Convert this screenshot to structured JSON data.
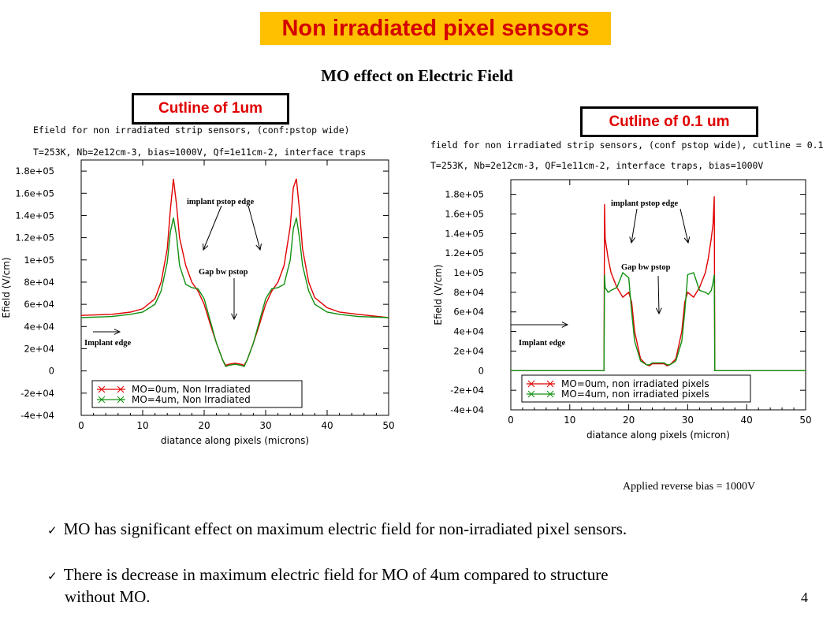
{
  "slide": {
    "title": "Non irradiated pixel sensors",
    "subtitle": "MO effect on Electric Field",
    "note": "Applied reverse bias = 1000V",
    "page_number": "4",
    "bullets": [
      "MO has significant effect on maximum electric field for non-irradiated pixel sensors.",
      "There is decrease in maximum electric field for MO of 4um compared to structure",
      "without MO."
    ],
    "colors": {
      "title_bg": "#ffc000",
      "title_text": "#d40000",
      "cutline_text": "#e00000"
    }
  },
  "chart_data": [
    {
      "type": "line",
      "cutline_label": "Cutline  of 1um",
      "header_lines": [
        "Efield for non irradiated strip sensors, (conf:pstop wide)",
        "T=253K, Nb=2e12cm-3, bias=1000V, Qf=1e11cm-2, interface traps"
      ],
      "xlabel": "diatance along pixels (microns)",
      "ylabel": "Efield (V/cm)",
      "xlim": [
        0,
        50
      ],
      "ylim": [
        -40000,
        190000
      ],
      "xticks": [
        "0",
        "10",
        "20",
        "30",
        "40",
        "50"
      ],
      "yticks": [
        "-4e+04",
        "-2e+04",
        "0",
        "2e+04",
        "4e+04",
        "6e+04",
        "8e+04",
        "1e+05",
        "1.2e+05",
        "1.4e+05",
        "1.6e+05",
        "1.8e+05"
      ],
      "legend_position": "bottom-center",
      "annotations": [
        "implant  pstop edge",
        "Gap bw  pstop",
        "Implant edge"
      ],
      "series": [
        {
          "name": "MO=0um, Non Irradiated",
          "color": "#e00000",
          "x": [
            0,
            5,
            8,
            10,
            12,
            13,
            14,
            14.5,
            15,
            15.5,
            16,
            17,
            18,
            19,
            20,
            21,
            22,
            23,
            23.5,
            24,
            25,
            26,
            26.5,
            27,
            28,
            29,
            30,
            31,
            32,
            33,
            34,
            34.5,
            35,
            35.5,
            36,
            37,
            38,
            40,
            42,
            45,
            50
          ],
          "y": [
            50000,
            51000,
            53000,
            56000,
            65000,
            80000,
            110000,
            145000,
            173000,
            150000,
            120000,
            95000,
            80000,
            72000,
            60000,
            42000,
            25000,
            10000,
            5000,
            6000,
            7000,
            6000,
            5000,
            10000,
            25000,
            42000,
            60000,
            72000,
            80000,
            95000,
            130000,
            165000,
            173000,
            145000,
            110000,
            80000,
            66000,
            57000,
            53000,
            51000,
            48000
          ]
        },
        {
          "name": "MO=4um, Non Irradiated",
          "color": "#109010",
          "x": [
            0,
            5,
            8,
            10,
            12,
            13,
            14,
            14.5,
            15,
            15.5,
            16,
            17,
            18,
            19,
            20,
            21,
            22,
            23,
            23.5,
            24,
            25,
            26,
            26.5,
            27,
            28,
            29,
            30,
            31,
            32,
            33,
            34,
            34.5,
            35,
            35.5,
            36,
            37,
            38,
            40,
            42,
            45,
            50
          ],
          "y": [
            48000,
            49000,
            51000,
            53000,
            60000,
            72000,
            98000,
            125000,
            138000,
            122000,
            95000,
            78000,
            75000,
            74000,
            65000,
            45000,
            25000,
            10000,
            4000,
            5000,
            6000,
            5000,
            4000,
            10000,
            25000,
            45000,
            65000,
            74000,
            75000,
            78000,
            100000,
            128000,
            138000,
            120000,
            95000,
            72000,
            60000,
            53000,
            51000,
            49000,
            48000
          ]
        }
      ]
    },
    {
      "type": "line",
      "cutline_label": "Cutline  of 0.1 um",
      "header_lines": [
        "field for non irradiated strip sensors, (conf pstop wide), cutline = 0.1",
        "T=253K, Nb=2e12cm-3, QF=1e11cm-2, interface traps, bias=1000V"
      ],
      "xlabel": "diatance along pixels (micron)",
      "ylabel": "Efield (V/cm)",
      "xlim": [
        0,
        50
      ],
      "ylim": [
        -40000,
        195000
      ],
      "xticks": [
        "0",
        "10",
        "20",
        "30",
        "40",
        "50"
      ],
      "yticks": [
        "-4e+04",
        "-2e+04",
        "0",
        "2e+04",
        "4e+04",
        "6e+04",
        "8e+04",
        "1e+05",
        "1.2e+05",
        "1.4e+05",
        "1.6e+05",
        "1.8e+05"
      ],
      "legend_position": "bottom-center",
      "annotations": [
        "implant pstop edge",
        "Gap bw  pstop",
        "Implant edge"
      ],
      "series": [
        {
          "name": "MO=0um, non irradiated pixels",
          "color": "#e00000",
          "x": [
            0,
            15.8,
            15.9,
            16,
            16.5,
            17,
            18,
            19,
            20,
            20.5,
            21,
            22,
            23,
            23.5,
            24,
            25,
            26,
            26.5,
            27,
            28,
            29,
            29.5,
            30,
            31,
            32,
            33,
            33.5,
            34,
            34.3,
            34.5,
            34.6,
            50
          ],
          "y": [
            0,
            0,
            170000,
            135000,
            115000,
            100000,
            85000,
            75000,
            80000,
            70000,
            40000,
            12000,
            6000,
            5000,
            7000,
            7000,
            7000,
            5000,
            6000,
            12000,
            40000,
            70000,
            80000,
            75000,
            85000,
            100000,
            115000,
            135000,
            150000,
            178000,
            0,
            0
          ]
        },
        {
          "name": "MO=4um, non irradiated pixels",
          "color": "#109010",
          "x": [
            0,
            15.8,
            15.9,
            16,
            16.5,
            17,
            18,
            19,
            20,
            20.5,
            21,
            22,
            23,
            23.5,
            24,
            25,
            26,
            26.5,
            27,
            28,
            29,
            29.5,
            30,
            31,
            32,
            33,
            33.5,
            34,
            34.3,
            34.5,
            34.6,
            50
          ],
          "y": [
            0,
            0,
            98000,
            85000,
            80000,
            82000,
            85000,
            100000,
            95000,
            60000,
            30000,
            10000,
            6000,
            6000,
            8000,
            8000,
            8000,
            6000,
            6000,
            10000,
            30000,
            60000,
            98000,
            100000,
            82000,
            80000,
            78000,
            82000,
            90000,
            98000,
            0,
            0
          ]
        }
      ]
    }
  ]
}
